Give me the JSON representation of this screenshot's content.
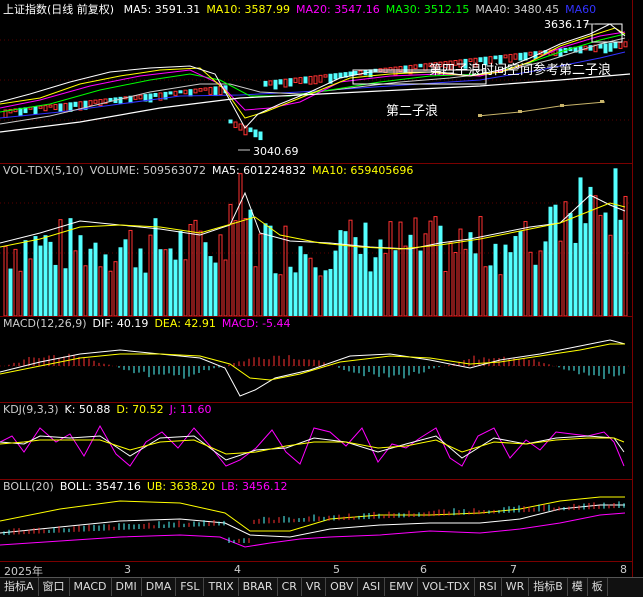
{
  "main": {
    "title": "上证指数(日线 前复权)",
    "indicators": [
      {
        "label": "MA5: 3591.31",
        "color": "#ffffff"
      },
      {
        "label": "MA10: 3587.99",
        "color": "#ffff00"
      },
      {
        "label": "MA20: 3547.16",
        "color": "#ff00ff"
      },
      {
        "label": "MA30: 3512.15",
        "color": "#00ff00"
      },
      {
        "label": "MA40: 3480.45",
        "color": "#cccccc"
      },
      {
        "label": "MA60",
        "color": "#3333ff"
      }
    ],
    "high_label": "3636.17",
    "low_label": "3040.69",
    "annotation_1": "第四子浪时间空间参考第二子浪",
    "annotation_2": "第二子浪"
  },
  "volume": {
    "indicators": [
      {
        "label": "VOL-TDX(5,10)",
        "color": "#cccccc"
      },
      {
        "label": "VOLUME: 509563072",
        "color": "#cccccc"
      },
      {
        "label": "MA5: 601224832",
        "color": "#ffffff"
      },
      {
        "label": "MA10: 659405696",
        "color": "#ffff00"
      }
    ]
  },
  "macd": {
    "indicators": [
      {
        "label": "MACD(12,26,9)",
        "color": "#cccccc"
      },
      {
        "label": "DIF: 40.19",
        "color": "#ffffff"
      },
      {
        "label": "DEA: 42.91",
        "color": "#ffff00"
      },
      {
        "label": "MACD: -5.44",
        "color": "#ff00ff"
      }
    ]
  },
  "kdj": {
    "indicators": [
      {
        "label": "KDJ(9,3,3)",
        "color": "#cccccc"
      },
      {
        "label": "K: 50.88",
        "color": "#ffffff"
      },
      {
        "label": "D: 70.52",
        "color": "#ffff00"
      },
      {
        "label": "J: 11.60",
        "color": "#ff00ff"
      }
    ]
  },
  "boll": {
    "indicators": [
      {
        "label": "BOLL(20)",
        "color": "#cccccc"
      },
      {
        "label": "BOLL: 3547.16",
        "color": "#ffffff"
      },
      {
        "label": "UB: 3638.20",
        "color": "#ffff00"
      },
      {
        "label": "LB: 3456.12",
        "color": "#ff00ff"
      }
    ]
  },
  "time_axis": {
    "start": "2025年",
    "m3": "3",
    "m4": "4",
    "m5": "5",
    "m6": "6",
    "m7": "7",
    "m8": "8"
  },
  "tabs": [
    "指标A",
    "窗口",
    "MACD",
    "DMI",
    "DMA",
    "FSL",
    "TRIX",
    "BRAR",
    "CR",
    "VR",
    "OBV",
    "ASI",
    "EMV",
    "VOL-TDX",
    "RSI",
    "WR",
    "指标B",
    "模",
    "板"
  ],
  "colors": {
    "up": "#ff3232",
    "down": "#54ffff",
    "grid": "#7a0000"
  }
}
